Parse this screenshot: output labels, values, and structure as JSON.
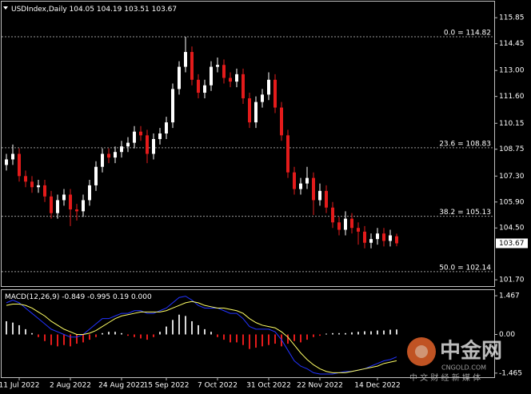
{
  "chart_data": {
    "type": "candlestick",
    "symbol": "USDIndex,Daily",
    "categories": [
      null,
      null,
      "11 Jul 2022",
      null,
      null,
      null,
      null,
      null,
      null,
      null,
      "2 Aug 2022",
      null,
      null,
      null,
      null,
      null,
      null,
      null,
      "24 Aug 2022",
      null,
      null,
      null,
      null,
      null,
      null,
      "15 Sep 2022",
      null,
      null,
      null,
      null,
      null,
      null,
      null,
      "7 Oct 2022",
      null,
      null,
      null,
      null,
      null,
      null,
      null,
      "31 Oct 2022",
      null,
      null,
      null,
      null,
      null,
      null,
      null,
      "22 Nov 2022",
      null,
      null,
      null,
      null,
      null,
      null,
      null,
      null,
      "14 Dec 2022",
      null,
      null,
      null
    ],
    "open": [
      107.9,
      108.2,
      108.5,
      107.3,
      107.0,
      106.7,
      106.8,
      106.2,
      105.3,
      106.0,
      106.3,
      105.5,
      105.4,
      106.0,
      106.8,
      107.8,
      108.5,
      108.3,
      108.6,
      108.9,
      109.1,
      109.7,
      109.5,
      108.5,
      109.3,
      109.6,
      110.2,
      112.0,
      113.2,
      114.0,
      112.5,
      111.8,
      112.2,
      113.2,
      113.3,
      112.6,
      112.4,
      112.8,
      111.5,
      110.2,
      111.3,
      111.7,
      112.5,
      111.0,
      109.5,
      107.5,
      106.6,
      106.9,
      107.2,
      106.0,
      106.5,
      105.6,
      104.8,
      104.4,
      105.0,
      104.5,
      104.3,
      103.7,
      103.9,
      104.2,
      103.8,
      104.05
    ],
    "high": [
      108.5,
      109.0,
      108.8,
      107.6,
      107.3,
      107.1,
      107.1,
      106.5,
      106.3,
      106.6,
      106.6,
      105.8,
      106.3,
      107.1,
      108.1,
      108.8,
      108.8,
      108.9,
      109.2,
      109.4,
      110.0,
      110.0,
      109.8,
      109.6,
      109.9,
      110.5,
      112.3,
      113.5,
      114.82,
      114.3,
      112.8,
      112.5,
      113.5,
      113.7,
      113.6,
      112.9,
      113.1,
      113.1,
      111.8,
      111.6,
      112.0,
      112.9,
      112.8,
      111.3,
      109.8,
      107.8,
      107.2,
      107.8,
      107.5,
      106.9,
      106.8,
      105.9,
      105.1,
      105.4,
      105.3,
      104.8,
      104.6,
      104.2,
      104.5,
      104.5,
      104.4,
      104.19
    ],
    "low": [
      107.6,
      107.9,
      107.0,
      106.7,
      106.4,
      106.4,
      105.9,
      105.0,
      105.0,
      105.7,
      104.6,
      104.9,
      105.1,
      105.7,
      106.5,
      107.5,
      108.0,
      108.0,
      108.3,
      108.6,
      108.8,
      109.2,
      108.0,
      108.2,
      109.0,
      109.3,
      109.9,
      111.7,
      112.9,
      112.2,
      111.5,
      111.5,
      111.9,
      112.9,
      112.3,
      112.1,
      112.1,
      111.2,
      109.9,
      109.9,
      111.0,
      111.4,
      110.7,
      109.2,
      107.2,
      106.3,
      106.3,
      106.6,
      105.2,
      105.7,
      105.3,
      104.5,
      104.1,
      104.1,
      104.2,
      103.6,
      103.4,
      103.4,
      103.6,
      103.5,
      103.5,
      103.51
    ],
    "close": [
      108.2,
      108.5,
      107.3,
      107.0,
      106.7,
      106.8,
      106.2,
      105.3,
      106.0,
      106.3,
      105.5,
      105.4,
      106.0,
      106.8,
      107.8,
      108.5,
      108.3,
      108.6,
      108.9,
      109.1,
      109.7,
      109.5,
      108.5,
      109.3,
      109.6,
      110.2,
      112.0,
      113.2,
      114.0,
      112.5,
      111.8,
      112.2,
      113.2,
      113.3,
      112.6,
      112.4,
      112.8,
      111.5,
      110.2,
      111.3,
      111.7,
      112.5,
      111.0,
      109.5,
      107.5,
      106.6,
      106.9,
      107.2,
      106.0,
      106.5,
      105.6,
      104.8,
      104.4,
      105.0,
      104.5,
      104.3,
      103.7,
      103.9,
      104.2,
      103.8,
      104.1,
      103.67
    ],
    "up_color": "#ffffff",
    "down_color": "#e41b1b",
    "ylim": [
      101.36,
      116.72
    ],
    "yticks": [
      115.85,
      114.45,
      {
        "value": 113,
        "label": "113.00"
      },
      {
        "value": 111.6,
        "label": "111.60"
      },
      110.15,
      108.75,
      {
        "value": 107.3,
        "label": "107.30"
      },
      {
        "value": 105.9,
        "label": "105.90"
      },
      {
        "value": 104.5,
        "label": "104.50"
      },
      {
        "value": 101.7,
        "label": "101.70"
      }
    ],
    "last_price": 103.67,
    "fib_levels": [
      {
        "value": 114.82,
        "label": "0.0 = 114.82"
      },
      {
        "value": 108.83,
        "label": "23.6 = 108.83"
      },
      {
        "value": 105.13,
        "label": "38.2 = 105.13"
      },
      {
        "value": 102.14,
        "label": "50.0 = 102.14"
      }
    ],
    "macd": {
      "title": "MACD(12,26,9)",
      "extra_value": {
        "value": 0,
        "label": "0.000"
      },
      "ylim": [
        -1.62,
        1.68
      ],
      "yticks": [
        1.467,
        {
          "value": 0,
          "label": "0.00"
        },
        -1.465
      ],
      "histogram": {
        "up_color": "#d8d8d8",
        "down_color": "#e41b1b",
        "values": [
          0.5,
          0.45,
          0.35,
          0.2,
          0.05,
          -0.1,
          -0.25,
          -0.4,
          -0.45,
          -0.4,
          -0.45,
          -0.35,
          -0.3,
          -0.2,
          -0.1,
          0.05,
          0.1,
          0.1,
          0.05,
          -0.05,
          -0.1,
          -0.15,
          -0.2,
          -0.1,
          0.1,
          0.3,
          0.55,
          0.75,
          0.7,
          0.5,
          0.35,
          0.2,
          0.1,
          -0.1,
          -0.2,
          -0.3,
          -0.3,
          -0.4,
          -0.55,
          -0.5,
          -0.45,
          -0.4,
          -0.35,
          -0.45,
          -0.35,
          -0.25,
          -0.3,
          -0.2,
          -0.1,
          -0.05,
          0.03,
          0.05,
          0.05,
          0.05,
          0.08,
          0.1,
          0.12,
          0.12,
          0.15,
          0.15,
          0.18,
          0.19
        ]
      },
      "series": [
        {
          "color": "#2233ff",
          "values": [
            1.2,
            1.3,
            1.2,
            1.0,
            0.8,
            0.6,
            0.4,
            0.2,
            0.1,
            0.0,
            -0.1,
            -0.1,
            0.0,
            0.2,
            0.4,
            0.6,
            0.6,
            0.7,
            0.8,
            0.8,
            0.9,
            0.9,
            0.8,
            0.8,
            0.9,
            1.0,
            1.2,
            1.4,
            1.45,
            1.3,
            1.1,
            1.0,
            1.0,
            1.0,
            0.9,
            0.8,
            0.8,
            0.6,
            0.3,
            0.2,
            0.2,
            0.2,
            0.1,
            -0.2,
            -0.6,
            -1.0,
            -1.2,
            -1.3,
            -1.45,
            -1.5,
            -1.5,
            -1.5,
            -1.45,
            -1.4,
            -1.4,
            -1.35,
            -1.3,
            -1.2,
            -1.1,
            -1.0,
            -0.95,
            -0.849
          ]
        },
        {
          "color": "#ffff66",
          "values": [
            1.1,
            1.15,
            1.15,
            1.1,
            1.0,
            0.85,
            0.7,
            0.5,
            0.35,
            0.2,
            0.1,
            0.0,
            0.0,
            0.05,
            0.15,
            0.3,
            0.45,
            0.6,
            0.7,
            0.75,
            0.8,
            0.85,
            0.85,
            0.85,
            0.85,
            0.9,
            1.0,
            1.1,
            1.2,
            1.25,
            1.2,
            1.1,
            1.05,
            1.0,
            1.0,
            0.95,
            0.9,
            0.8,
            0.6,
            0.45,
            0.35,
            0.3,
            0.25,
            0.1,
            -0.1,
            -0.4,
            -0.7,
            -0.95,
            -1.15,
            -1.3,
            -1.4,
            -1.45,
            -1.45,
            -1.45,
            -1.4,
            -1.35,
            -1.3,
            -1.25,
            -1.2,
            -1.1,
            -1.05,
            -0.995
          ]
        }
      ]
    },
    "watermark": {
      "name": "中金网",
      "site": "CNGOLD.COM",
      "slogan": "中 文 财 经 新 媒 体"
    }
  }
}
